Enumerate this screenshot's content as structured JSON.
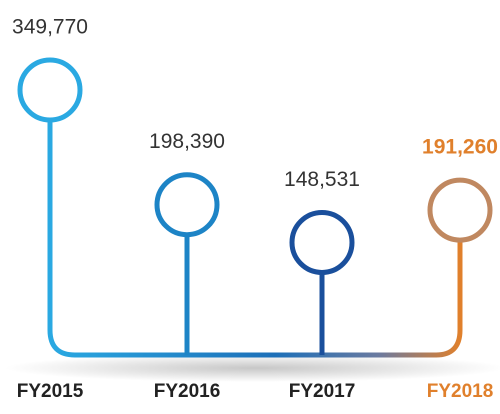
{
  "chart_data": {
    "type": "lollipop",
    "categories": [
      "FY2015",
      "FY2016",
      "FY2017",
      "FY2018"
    ],
    "values": [
      349770,
      198390,
      148531,
      191260
    ],
    "value_labels": [
      "349,770",
      "198,390",
      "148,531",
      "191,260"
    ],
    "colors": [
      "#2aa9e2",
      "#1d84c6",
      "#1a4f9c",
      "#e0802c"
    ],
    "highlight_index": 3
  }
}
